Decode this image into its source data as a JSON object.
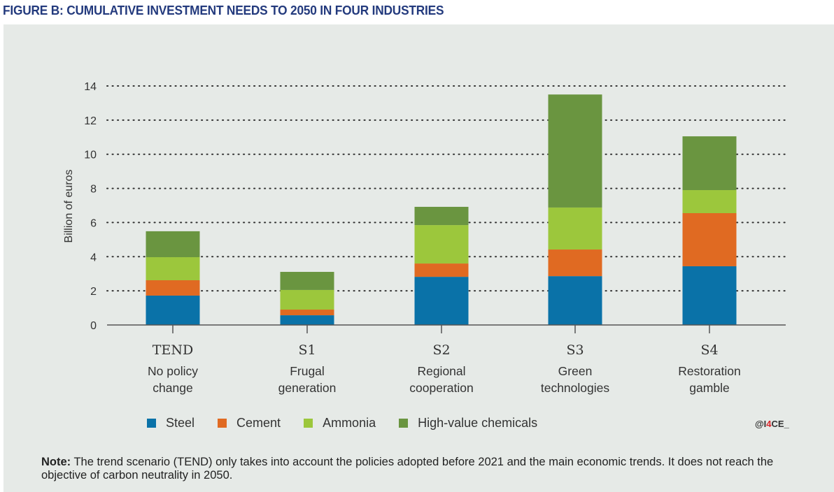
{
  "figure_title": "FIGURE B: CUMULATIVE INVESTMENT NEEDS TO 2050 IN FOUR INDUSTRIES",
  "credit": {
    "prefix": "@I",
    "highlight": "4",
    "suffix": "CE_"
  },
  "note": {
    "label": "Note:",
    "text": " The trend scenario (TEND) only takes into account the policies adopted before 2021 and the main economic trends. It does not reach the objective of carbon neutrality in 2050."
  },
  "chart_data": {
    "type": "bar",
    "stacked": true,
    "title": "Cumulative investment needs to 2050 in four industries",
    "xlabel": "",
    "ylabel": "Billion of euros",
    "ylim": [
      0,
      14
    ],
    "yticks": [
      0,
      2,
      4,
      6,
      8,
      10,
      12,
      14
    ],
    "grid": true,
    "legend_position": "bottom",
    "categories": [
      {
        "code": "TEND",
        "name_lines": [
          "No policy",
          "change"
        ]
      },
      {
        "code": "S1",
        "name_lines": [
          "Frugal",
          "generation"
        ]
      },
      {
        "code": "S2",
        "name_lines": [
          "Regional",
          "cooperation"
        ]
      },
      {
        "code": "S3",
        "name_lines": [
          "Green",
          "technologies"
        ]
      },
      {
        "code": "S4",
        "name_lines": [
          "Restoration",
          "gamble"
        ]
      }
    ],
    "series": [
      {
        "name": "Steel",
        "color": "#0a72a8",
        "values": [
          1.72,
          0.57,
          2.82,
          2.86,
          3.44
        ]
      },
      {
        "name": "Cement",
        "color": "#e06a22",
        "values": [
          0.9,
          0.33,
          0.78,
          1.56,
          3.11
        ]
      },
      {
        "name": "Ammonia",
        "color": "#9cc73c",
        "values": [
          1.35,
          1.15,
          2.25,
          2.46,
          1.35
        ]
      },
      {
        "name": "High-value chemicals",
        "color": "#6a9540",
        "values": [
          1.52,
          1.06,
          1.07,
          6.62,
          3.15
        ]
      }
    ]
  }
}
